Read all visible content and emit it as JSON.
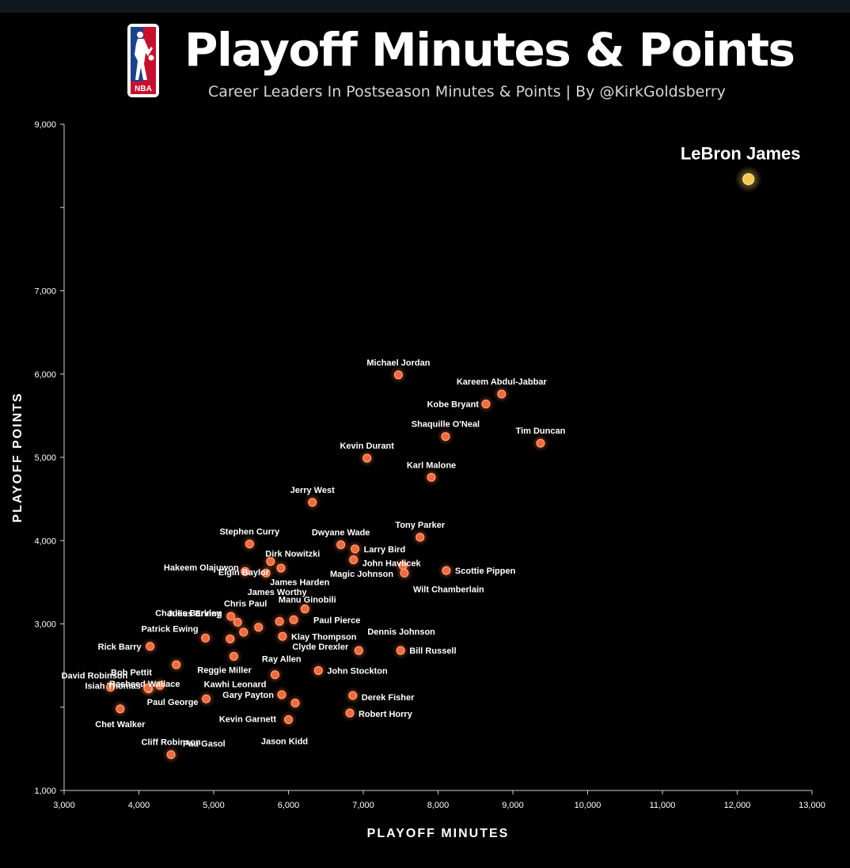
{
  "header": {
    "title": "Playoff Minutes & Points",
    "subtitle": "Career Leaders In Postseason Minutes & Points | By @KirkGoldsberry",
    "logo_text": "NBA"
  },
  "colors": {
    "background": "#000000",
    "point": "#f26a3c",
    "highlight": "#f6c64e",
    "text": "#ffffff"
  },
  "chart_data": {
    "type": "scatter",
    "title": "Playoff Minutes & Points",
    "xlabel": "PLAYOFF MINUTES",
    "ylabel": "PLAYOFF POINTS",
    "xlim": [
      3000,
      13000
    ],
    "ylim": [
      1000,
      9000
    ],
    "x_ticks": [
      "3,000",
      "4,000",
      "5,000",
      "6,000",
      "7,000",
      "8,000",
      "9,000",
      "10,000",
      "11,000",
      "12,000",
      "13,000"
    ],
    "y_ticks": [
      "1,000",
      "",
      "3,000",
      "4,000",
      "5,000",
      "6,000",
      "7,000",
      "",
      "9,000"
    ],
    "grid": false,
    "points": [
      {
        "name": "LeBron James",
        "x": 12150,
        "y": 8340,
        "highlight": true
      },
      {
        "name": "Michael Jordan",
        "x": 7470,
        "y": 5990
      },
      {
        "name": "Kareem Abdul-Jabbar",
        "x": 8850,
        "y": 5760
      },
      {
        "name": "Kobe Bryant",
        "x": 8640,
        "y": 5640
      },
      {
        "name": "Shaquille O'Neal",
        "x": 8100,
        "y": 5250
      },
      {
        "name": "Tim Duncan",
        "x": 9370,
        "y": 5170
      },
      {
        "name": "Kevin Durant",
        "x": 7050,
        "y": 4990
      },
      {
        "name": "Karl Malone",
        "x": 7910,
        "y": 4760
      },
      {
        "name": "Jerry West",
        "x": 6320,
        "y": 4460
      },
      {
        "name": "Tony Parker",
        "x": 7760,
        "y": 4040
      },
      {
        "name": "Stephen Curry",
        "x": 5480,
        "y": 3960
      },
      {
        "name": "Dwyane Wade",
        "x": 6700,
        "y": 3950
      },
      {
        "name": "Larry Bird",
        "x": 6890,
        "y": 3900
      },
      {
        "name": "Dirk Nowitzki",
        "x": 5760,
        "y": 3750
      },
      {
        "name": "John Havlicek",
        "x": 6870,
        "y": 3770
      },
      {
        "name": "Hakeem Olajuwon",
        "x": 5420,
        "y": 3630
      },
      {
        "name": "James Harden",
        "x": 5700,
        "y": 3610
      },
      {
        "name": "Elgin Baylor",
        "x": 5900,
        "y": 3670
      },
      {
        "name": "Magic Johnson",
        "x": 7530,
        "y": 3700
      },
      {
        "name": "Wilt Chamberlain",
        "x": 7550,
        "y": 3610
      },
      {
        "name": "Scottie Pippen",
        "x": 8110,
        "y": 3640
      },
      {
        "name": "James Worthy",
        "x": 6070,
        "y": 3050
      },
      {
        "name": "Manu Ginobili",
        "x": 6220,
        "y": 3180
      },
      {
        "name": "Chris Paul",
        "x": 5880,
        "y": 3030
      },
      {
        "name": "Julius Erving",
        "x": 5230,
        "y": 3090
      },
      {
        "name": "Charles Barkley",
        "x": 5320,
        "y": 3020
      },
      {
        "name": "Paul Pierce",
        "x": 5600,
        "y": 2960
      },
      {
        "name": "Klay Thompson",
        "x": 5920,
        "y": 2850
      },
      {
        "name": "Dennis Johnson",
        "x": 6940,
        "y": 2680
      },
      {
        "name": "Bill Russell",
        "x": 7500,
        "y": 2680
      },
      {
        "name": "Rick Barry",
        "x": 4150,
        "y": 2730
      },
      {
        "name": "Patrick Ewing",
        "x": 4890,
        "y": 2830
      },
      {
        "name": "Clyde Drexler",
        "x": 5400,
        "y": 2900
      },
      {
        "name": "Ray Allen",
        "x": 5220,
        "y": 2820
      },
      {
        "name": "Reggie Miller",
        "x": 5270,
        "y": 2610
      },
      {
        "name": "John Stockton",
        "x": 6400,
        "y": 2440
      },
      {
        "name": "Kawhi Leonard",
        "x": 5820,
        "y": 2390
      },
      {
        "name": "Rasheed Wallace",
        "x": 4500,
        "y": 2510
      },
      {
        "name": "David Robinson",
        "x": 3620,
        "y": 2240
      },
      {
        "name": "Bob Pettit",
        "x": 4280,
        "y": 2260
      },
      {
        "name": "Gary Payton",
        "x": 5910,
        "y": 2150
      },
      {
        "name": "Derek Fisher",
        "x": 6860,
        "y": 2140
      },
      {
        "name": "Isiah Thomas",
        "x": 4130,
        "y": 2220
      },
      {
        "name": "Kevin Garnett",
        "x": 6090,
        "y": 2050
      },
      {
        "name": "Paul George",
        "x": 4900,
        "y": 2100
      },
      {
        "name": "Robert Horry",
        "x": 6820,
        "y": 1930
      },
      {
        "name": "Jason Kidd",
        "x": 6000,
        "y": 1850
      },
      {
        "name": "Chet Walker",
        "x": 3750,
        "y": 1980
      },
      {
        "name": "Pau Gasol",
        "x": 4120,
        "y": 2230
      },
      {
        "name": "Cliff Robinson",
        "x": 4430,
        "y": 1430
      }
    ]
  }
}
